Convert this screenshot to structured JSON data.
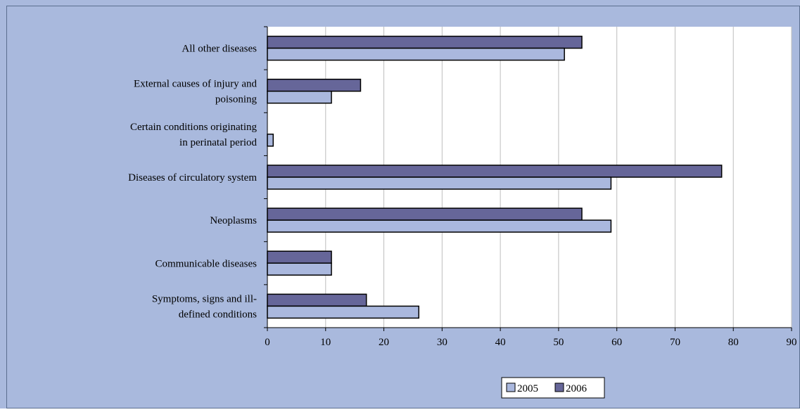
{
  "chart_data": {
    "type": "bar",
    "orientation": "horizontal",
    "categories": [
      "All other diseases",
      "External causes of injury and poisoning",
      "Certain conditions originating in perinatal period",
      "Diseases of circulatory system",
      "Neoplasms",
      "Communicable diseases",
      "Symptoms, signs and ill-defined conditions"
    ],
    "category_lines": [
      [
        "All other diseases"
      ],
      [
        "External causes of injury and",
        "poisoning"
      ],
      [
        "Certain conditions originating",
        "in perinatal period"
      ],
      [
        "Diseases of circulatory system"
      ],
      [
        "Neoplasms"
      ],
      [
        "Communicable diseases"
      ],
      [
        "Symptoms, signs and ill-",
        "defined conditions"
      ]
    ],
    "series": [
      {
        "name": "2005",
        "values": [
          51,
          11,
          1,
          59,
          59,
          11,
          26
        ],
        "color": "#aab8de"
      },
      {
        "name": "2006",
        "values": [
          54,
          16,
          0,
          78,
          54,
          11,
          17
        ],
        "color": "#666699"
      }
    ],
    "xlim": [
      0,
      90
    ],
    "xticks": [
      "0",
      "10",
      "20",
      "30",
      "40",
      "50",
      "60",
      "70",
      "80",
      "90"
    ],
    "grid": "vertical",
    "legend_position": "bottom-center",
    "background_color": "#a9b9dd",
    "plot_background_color": "#ffffff"
  }
}
